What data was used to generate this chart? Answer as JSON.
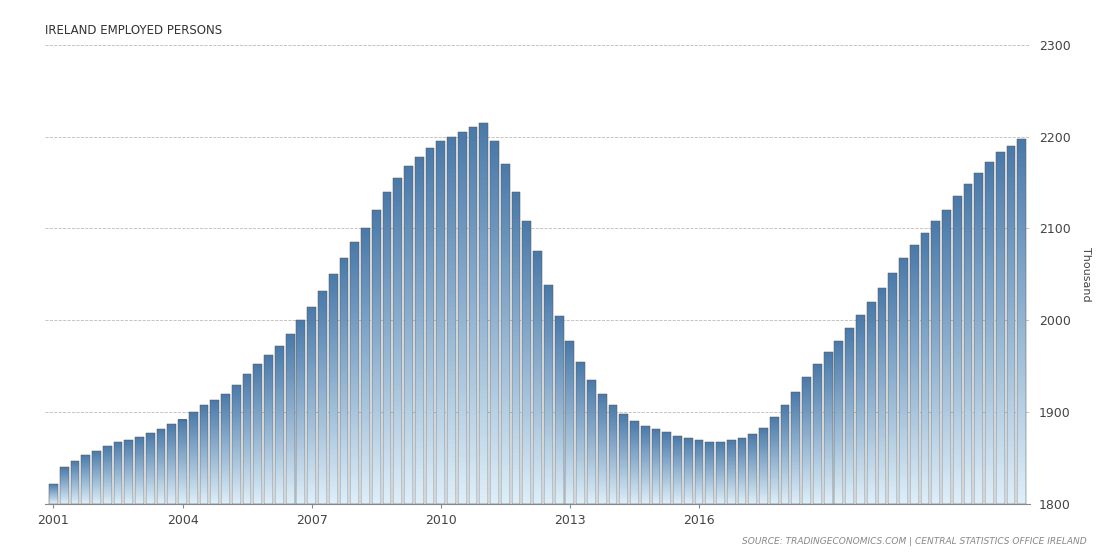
{
  "title": "IRELAND EMPLOYED PERSONS",
  "ylabel": "Thousand",
  "source_text": "SOURCE: TRADINGECONOMICS.COM | CENTRAL STATISTICS OFFICE IRELAND",
  "ylim": [
    1800,
    2300
  ],
  "yticks": [
    1800,
    1900,
    2000,
    2100,
    2200,
    2300
  ],
  "xtick_years": [
    2001,
    2004,
    2007,
    2010,
    2013,
    2016
  ],
  "background_color": "#ffffff",
  "bar_edge_color": "#555555",
  "bar_top_color": "#4a7aaa",
  "bar_bottom_color": "#ddeef8",
  "grid_color": "#bbbbbb",
  "values": [
    1822,
    1840,
    1847,
    1853,
    1858,
    1863,
    1868,
    1870,
    1873,
    1877,
    1882,
    1887,
    1892,
    1900,
    1908,
    1913,
    1920,
    1930,
    1942,
    1952,
    1962,
    1972,
    1985,
    2000,
    2015,
    2032,
    2050,
    2068,
    2085,
    2100,
    2120,
    2140,
    2155,
    2168,
    2178,
    2188,
    2195,
    2200,
    2205,
    2210,
    2215,
    2195,
    2170,
    2140,
    2108,
    2075,
    2038,
    2005,
    1978,
    1955,
    1935,
    1920,
    1908,
    1898,
    1890,
    1885,
    1882,
    1878,
    1874,
    1872,
    1870,
    1868,
    1868,
    1870,
    1872,
    1876,
    1883,
    1895,
    1908,
    1922,
    1938,
    1952,
    1965,
    1978,
    1992,
    2006,
    2020,
    2035,
    2052,
    2068,
    2082,
    2095,
    2108,
    2120,
    2135,
    2148,
    2160,
    2172,
    2183,
    2190,
    2197
  ]
}
